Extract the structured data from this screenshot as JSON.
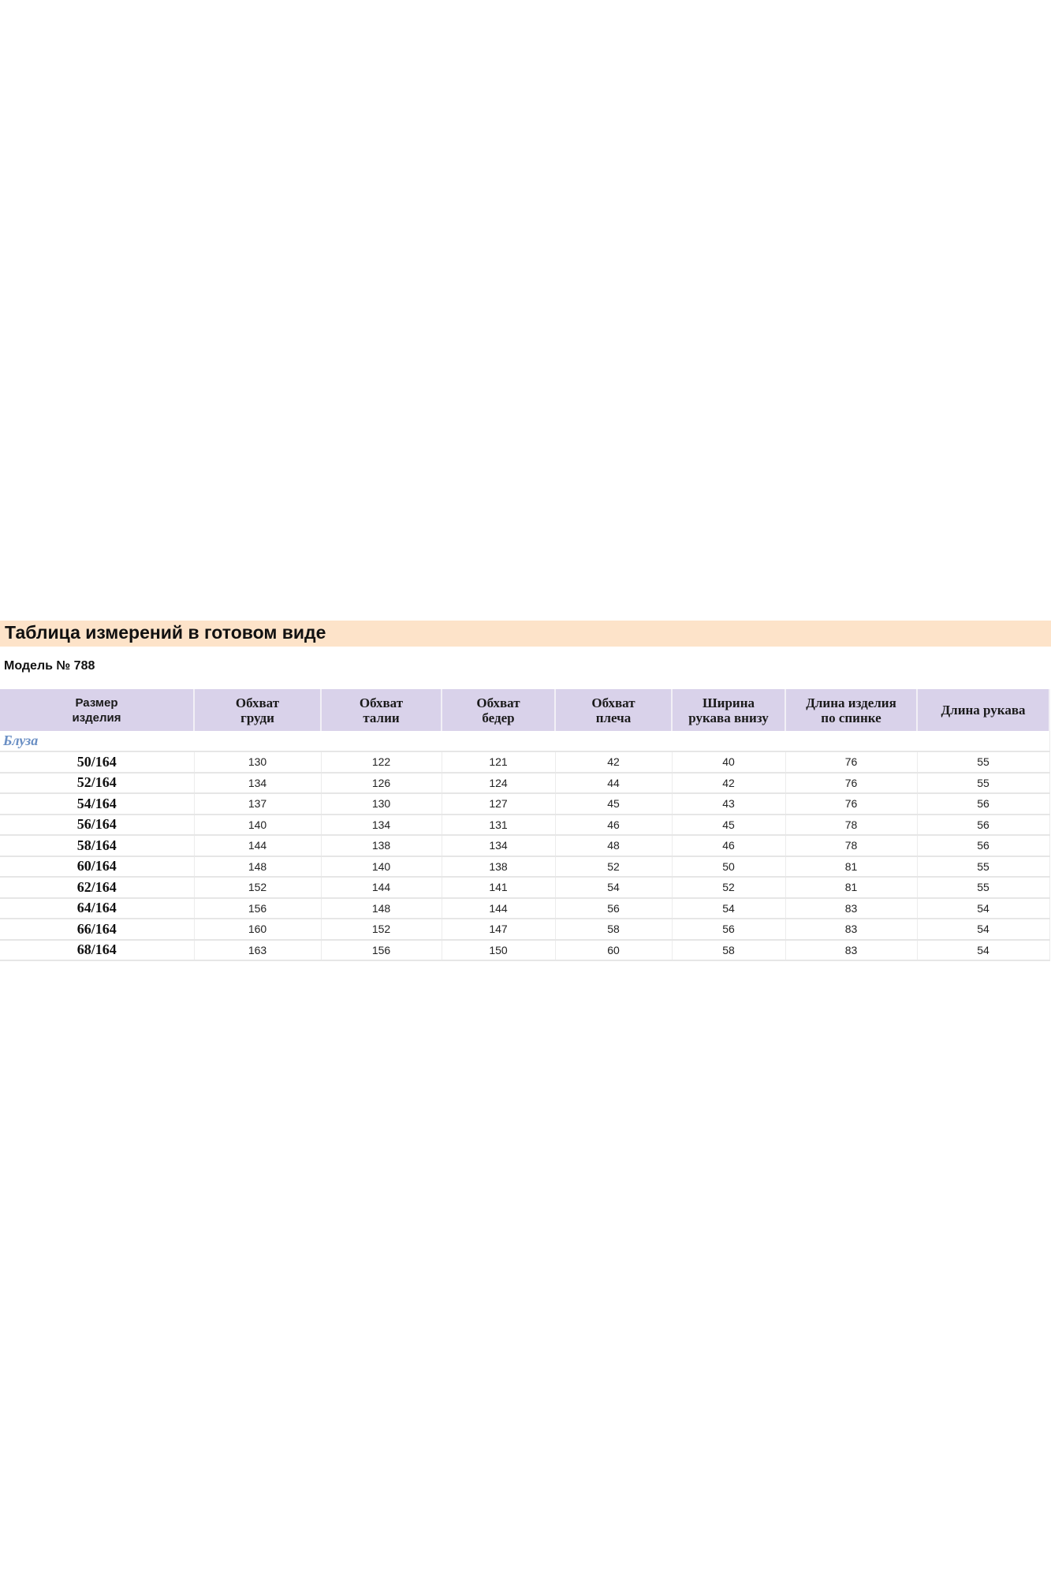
{
  "title": "Таблица измерений в готовом виде",
  "model": "Модель № 788",
  "colors": {
    "title_bg": "#fde3c9",
    "header_bg": "#d9d2ea",
    "section_text": "#6a8fc4"
  },
  "table": {
    "headers": [
      [
        "Размер",
        "изделия"
      ],
      [
        "Обхват",
        "груди"
      ],
      [
        "Обхват",
        "талии"
      ],
      [
        "Обхват",
        "бедер"
      ],
      [
        "Обхват",
        "плеча"
      ],
      [
        "Ширина",
        "рукава внизу"
      ],
      [
        "Длина изделия",
        "по спинке"
      ],
      [
        "Длина рукава"
      ]
    ],
    "section": "Блуза",
    "rows": [
      [
        "50/164",
        "130",
        "122",
        "121",
        "42",
        "40",
        "76",
        "55"
      ],
      [
        "52/164",
        "134",
        "126",
        "124",
        "44",
        "42",
        "76",
        "55"
      ],
      [
        "54/164",
        "137",
        "130",
        "127",
        "45",
        "43",
        "76",
        "56"
      ],
      [
        "56/164",
        "140",
        "134",
        "131",
        "46",
        "45",
        "78",
        "56"
      ],
      [
        "58/164",
        "144",
        "138",
        "134",
        "48",
        "46",
        "78",
        "56"
      ],
      [
        "60/164",
        "148",
        "140",
        "138",
        "52",
        "50",
        "81",
        "55"
      ],
      [
        "62/164",
        "152",
        "144",
        "141",
        "54",
        "52",
        "81",
        "55"
      ],
      [
        "64/164",
        "156",
        "148",
        "144",
        "56",
        "54",
        "83",
        "54"
      ],
      [
        "66/164",
        "160",
        "152",
        "147",
        "58",
        "56",
        "83",
        "54"
      ],
      [
        "68/164",
        "163",
        "156",
        "150",
        "60",
        "58",
        "83",
        "54"
      ]
    ]
  }
}
